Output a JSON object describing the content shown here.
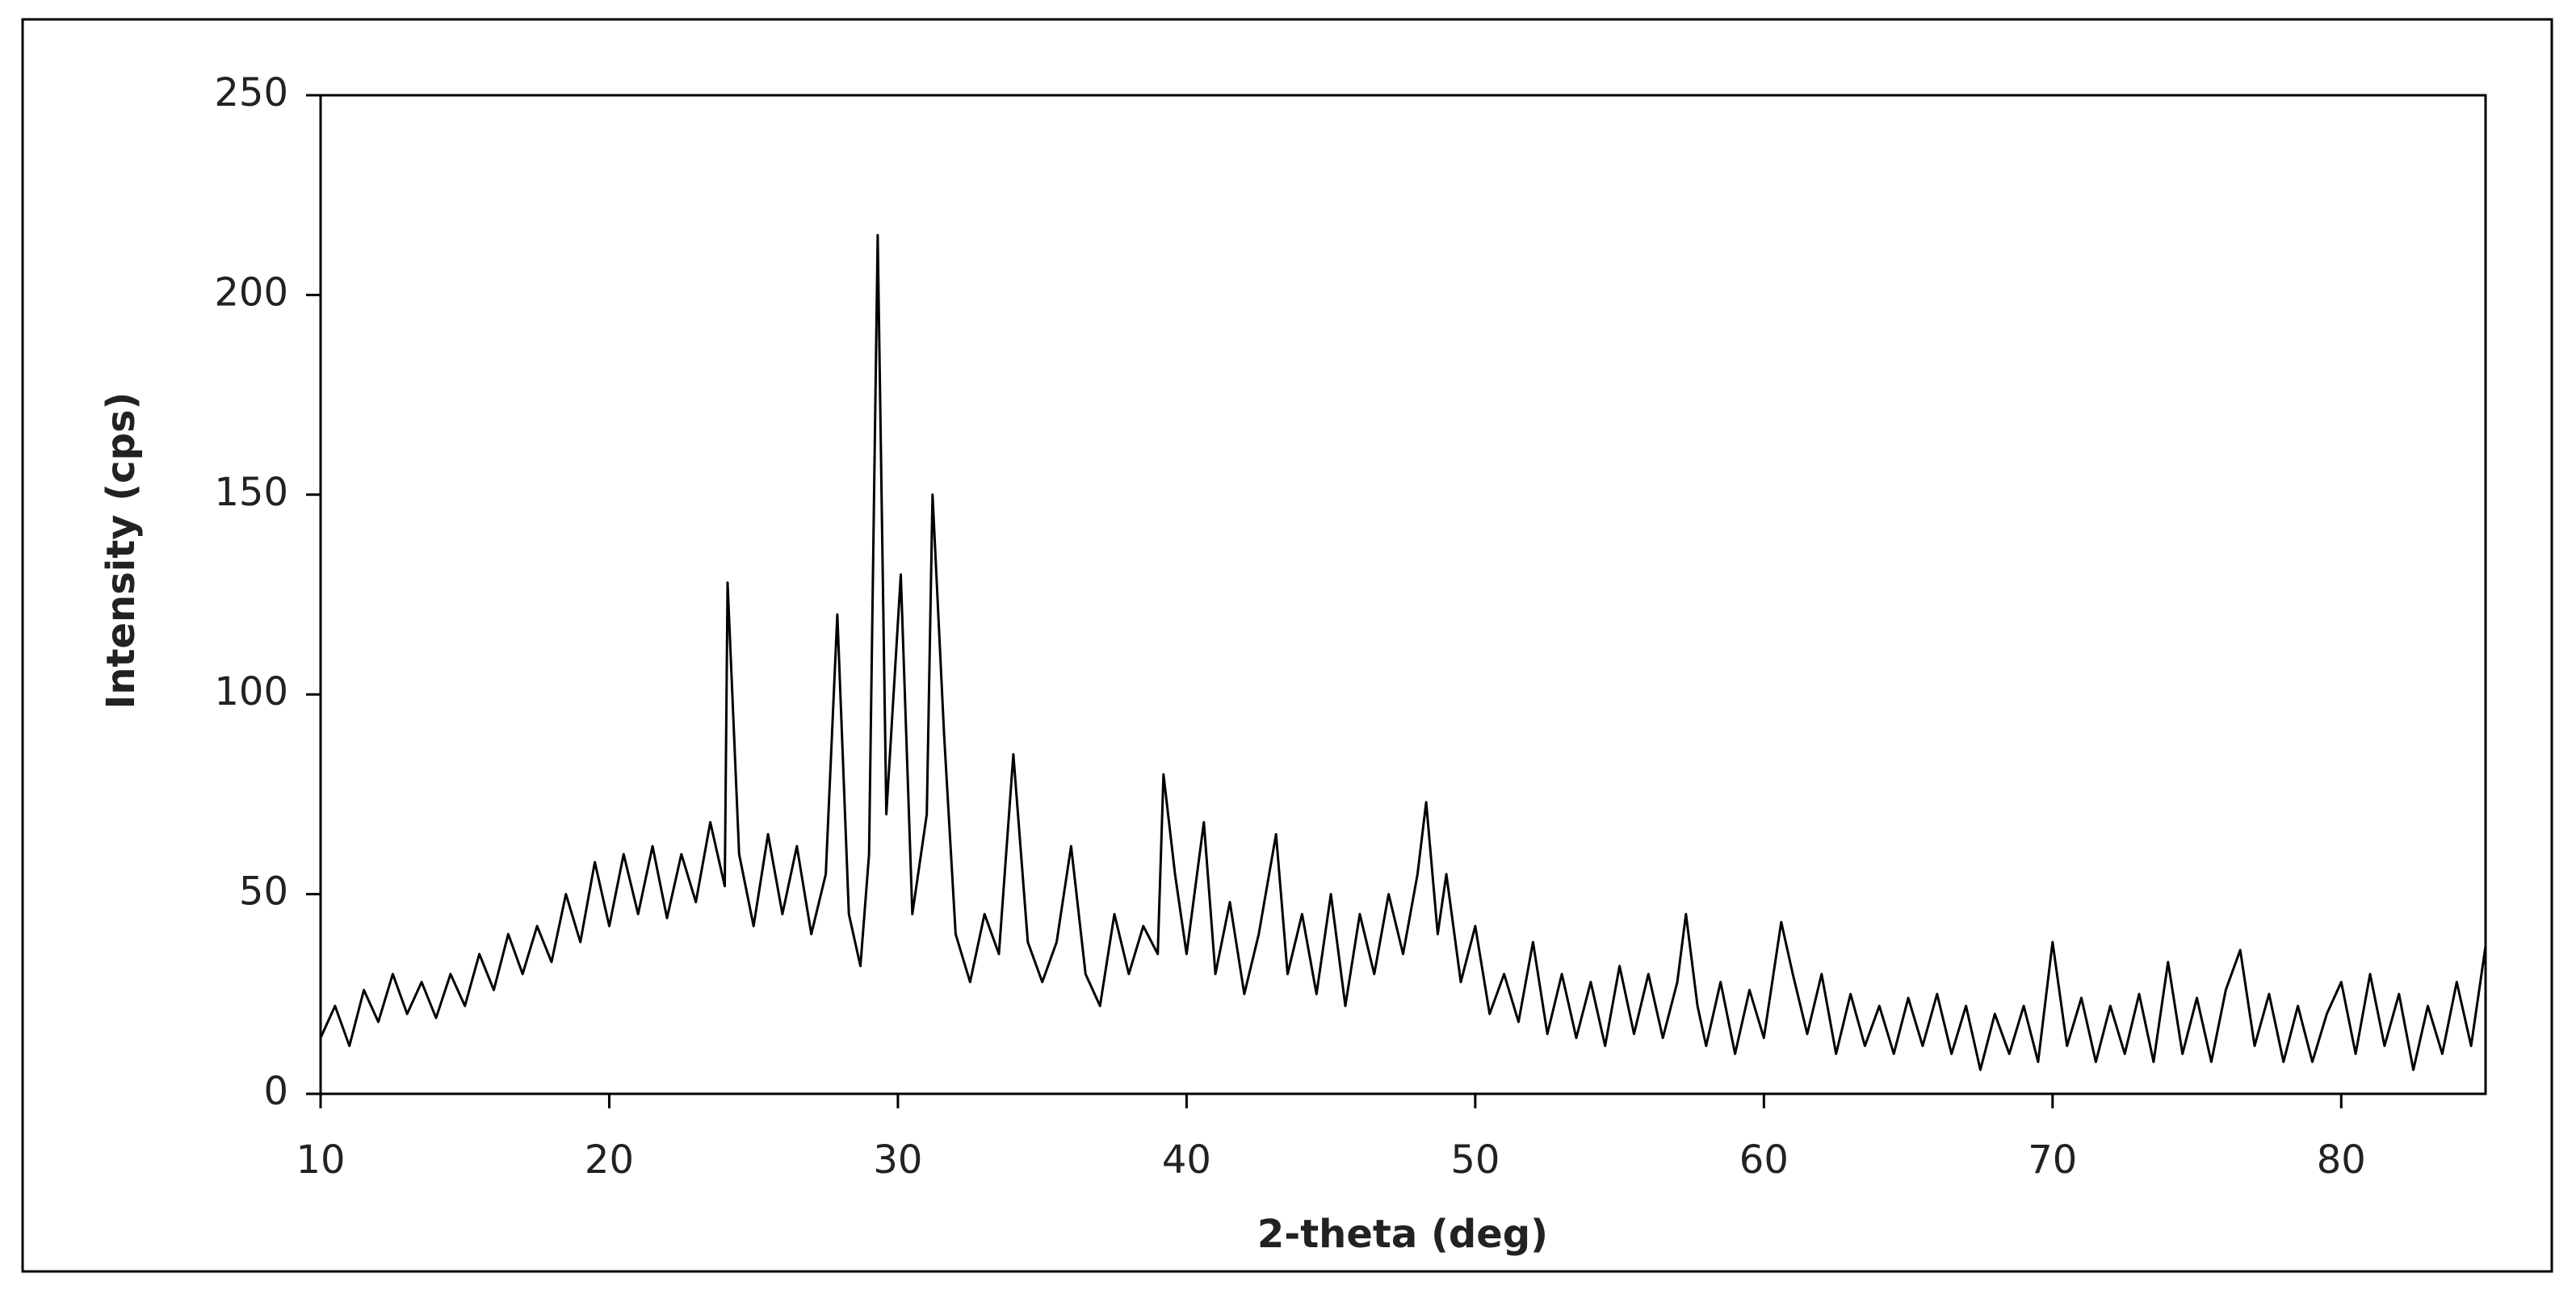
{
  "chart_data": {
    "type": "line",
    "x_label": "2-theta (deg)",
    "y_label": "Intensity (cps)",
    "xlim": [
      10,
      85
    ],
    "xticks": [
      10,
      20,
      30,
      40,
      50,
      60,
      70,
      80
    ],
    "ylim": [
      0,
      250
    ],
    "yticks": [
      0,
      50,
      100,
      150,
      200,
      250
    ],
    "grid": false,
    "color": "#000000",
    "x": [
      10,
      10.5,
      11,
      11.5,
      12,
      12.5,
      13,
      13.5,
      14,
      14.5,
      15,
      15.5,
      16,
      16.5,
      17,
      17.5,
      18,
      18.5,
      19,
      19.5,
      20,
      20.5,
      21,
      21.5,
      22,
      22.5,
      23,
      23.5,
      24,
      24.1,
      24.5,
      25,
      25.5,
      26,
      26.5,
      27,
      27.5,
      27.9,
      28.3,
      28.7,
      29,
      29.3,
      29.6,
      30.1,
      30.5,
      31,
      31.2,
      31.6,
      32,
      32.5,
      33,
      33.5,
      34,
      34.5,
      35,
      35.5,
      36,
      36.5,
      37,
      37.5,
      38,
      38.5,
      39,
      39.2,
      39.6,
      40,
      40.6,
      41,
      41.5,
      42,
      42.5,
      43.1,
      43.5,
      44,
      44.5,
      45,
      45.5,
      46,
      46.5,
      47,
      47.5,
      48,
      48.3,
      48.7,
      49,
      49.5,
      50,
      50.5,
      51,
      51.5,
      52,
      52.5,
      53,
      53.5,
      54,
      54.5,
      55,
      55.5,
      56,
      56.5,
      57,
      57.3,
      57.7,
      58,
      58.5,
      59,
      59.5,
      60,
      60.6,
      61,
      61.5,
      62,
      62.5,
      63,
      63.5,
      64,
      64.5,
      65,
      65.5,
      66,
      66.5,
      67,
      67.5,
      68,
      68.5,
      69,
      69.5,
      70,
      70.5,
      71,
      71.5,
      72,
      72.5,
      73,
      73.5,
      74,
      74.5,
      75,
      75.5,
      76,
      76.5,
      77,
      77.5,
      78,
      78.5,
      79,
      79.5,
      80,
      80.5,
      81,
      81.5,
      82,
      82.5,
      83,
      83.5,
      84,
      84.5,
      85
    ],
    "values": [
      14,
      22,
      12,
      26,
      18,
      30,
      20,
      28,
      19,
      30,
      22,
      35,
      26,
      40,
      30,
      42,
      33,
      50,
      38,
      58,
      42,
      60,
      45,
      62,
      44,
      60,
      48,
      68,
      52,
      128,
      60,
      42,
      65,
      45,
      62,
      40,
      55,
      120,
      45,
      32,
      60,
      215,
      70,
      130,
      45,
      70,
      150,
      90,
      40,
      28,
      45,
      35,
      85,
      38,
      28,
      38,
      62,
      30,
      22,
      45,
      30,
      42,
      35,
      80,
      55,
      35,
      68,
      30,
      48,
      25,
      40,
      65,
      30,
      45,
      25,
      50,
      22,
      45,
      30,
      50,
      35,
      55,
      73,
      40,
      55,
      28,
      42,
      20,
      30,
      18,
      38,
      15,
      30,
      14,
      28,
      12,
      32,
      15,
      30,
      14,
      28,
      45,
      22,
      12,
      28,
      10,
      26,
      14,
      43,
      30,
      15,
      30,
      10,
      25,
      12,
      22,
      10,
      24,
      12,
      25,
      10,
      22,
      6,
      20,
      10,
      22,
      8,
      38,
      12,
      24,
      8,
      22,
      10,
      25,
      8,
      33,
      10,
      24,
      8,
      26,
      36,
      12,
      25,
      8,
      22,
      8,
      20,
      28,
      10,
      30,
      12,
      25,
      6,
      22,
      10,
      28,
      12,
      37
    ]
  }
}
